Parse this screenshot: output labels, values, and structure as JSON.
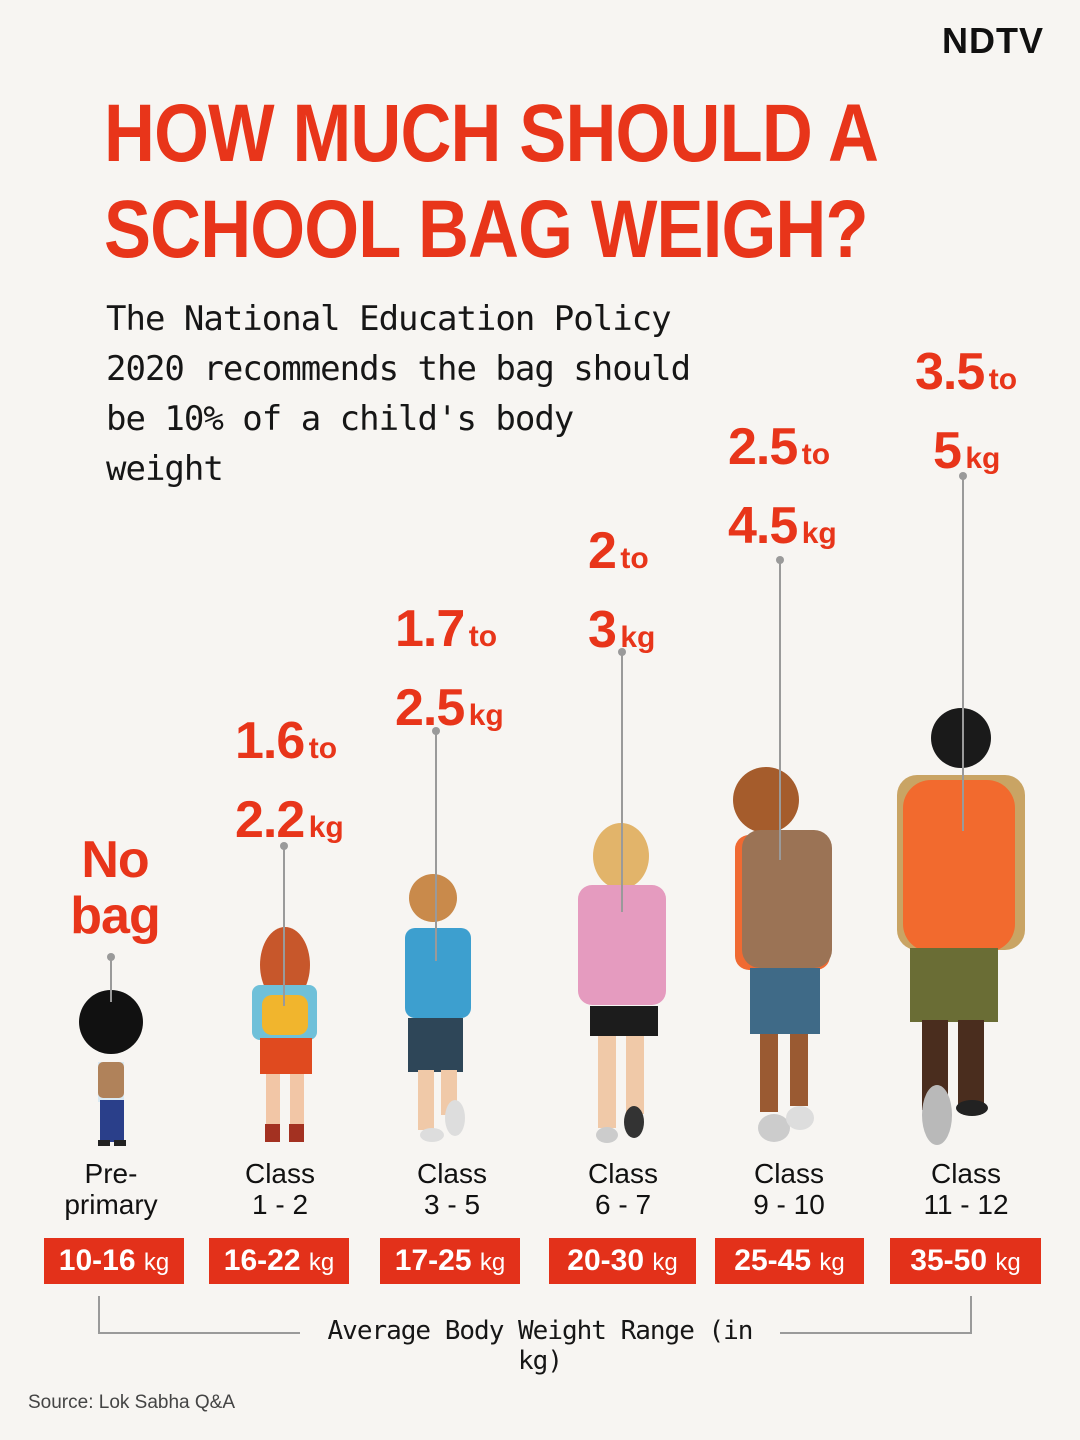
{
  "brand": {
    "logo_text": "NDTV"
  },
  "title": "HOW MUCH SHOULD A SCHOOL BAG WEIGH?",
  "subtitle": "The National Education Policy 2020 recommends the bag should be 10% of a child's body weight",
  "groups": [
    {
      "class_line1": "Pre-",
      "class_line2": "primary",
      "bag_line1": "No",
      "bag_line2": "bag",
      "body_weight": "10-16",
      "unit": "kg"
    },
    {
      "class_line1": "Class",
      "class_line2": "1 - 2",
      "bag_low": "1.6",
      "to": "to",
      "bag_high": "2.2",
      "unit": "kg",
      "body_weight": "16-22"
    },
    {
      "class_line1": "Class",
      "class_line2": "3 - 5",
      "bag_low": "1.7",
      "to": "to",
      "bag_high": "2.5",
      "unit": "kg",
      "body_weight": "17-25"
    },
    {
      "class_line1": "Class",
      "class_line2": "6 - 7",
      "bag_low": "2",
      "to": "to",
      "bag_high": "3",
      "unit": "kg",
      "body_weight": "20-30"
    },
    {
      "class_line1": "Class",
      "class_line2": "9 - 10",
      "bag_low": "2.5",
      "to": "to",
      "bag_high": "4.5",
      "unit": "kg",
      "body_weight": "25-45"
    },
    {
      "class_line1": "Class",
      "class_line2": "11 - 12",
      "bag_low": "3.5",
      "to": "to",
      "bag_high": "5",
      "unit": "kg",
      "body_weight": "35-50"
    }
  ],
  "axis_label": "Average Body Weight Range (in kg)",
  "source": "Source: Lok Sabha Q&A",
  "colors": {
    "accent": "#e8351a",
    "badge": "#e3311a",
    "background": "#f7f5f2"
  }
}
